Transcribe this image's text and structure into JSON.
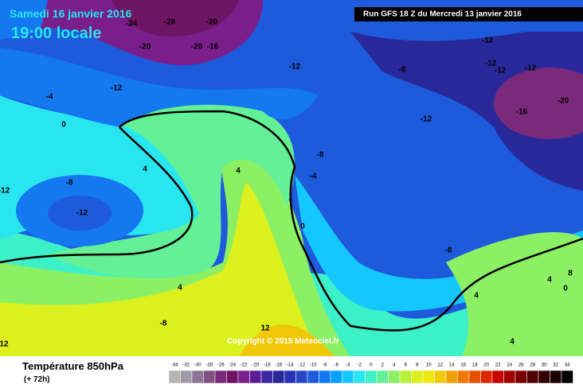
{
  "header": {
    "date": "Samedi 16 janvier 2016",
    "time": "19:00 locale",
    "run": "Run GFS 18 Z du Mercredi 13 janvier 2016"
  },
  "copyright": "Copyright © 2015 Meteociel.fr",
  "legend": {
    "title": "Température 850hPa",
    "lead": "(+ 72h)",
    "values": [
      -34,
      -32,
      -30,
      -28,
      -26,
      -24,
      -22,
      -20,
      -18,
      -16,
      -14,
      -12,
      -10,
      -8,
      -6,
      -4,
      -2,
      0,
      2,
      4,
      6,
      8,
      10,
      12,
      14,
      16,
      18,
      20,
      22,
      24,
      26,
      28,
      30,
      32,
      34
    ],
    "colors": [
      "#b4b4b4",
      "#a09aa8",
      "#8c7896",
      "#825082",
      "#7a2a7a",
      "#6e1464",
      "#7a1e8c",
      "#5a1e96",
      "#3c28a0",
      "#28289a",
      "#2832b4",
      "#2846c8",
      "#1e5adc",
      "#1478f0",
      "#00a0ff",
      "#14c8ff",
      "#28e6f0",
      "#3cf0c8",
      "#64f096",
      "#8cf064",
      "#b4f03c",
      "#dcf01e",
      "#f0e614",
      "#f0c80a",
      "#f0a000",
      "#f07800",
      "#e65000",
      "#dc2800",
      "#c80000",
      "#a00000",
      "#780000",
      "#500000",
      "#320000",
      "#1e0000",
      "#000000"
    ]
  },
  "map": {
    "labels": [
      "-24",
      "-28",
      "-20",
      "-20",
      "-20",
      "-16",
      "-12",
      "-12",
      "-12",
      "-12",
      "-12",
      "-12",
      "-8",
      "-20",
      "-16",
      "-12",
      "-4",
      "0",
      "4",
      "4",
      "-8",
      "-12",
      "-12",
      "-8",
      "-4",
      "0",
      "-8",
      "4",
      "-8",
      "12",
      "4",
      "4",
      "8",
      "0",
      "4",
      "12"
    ]
  }
}
